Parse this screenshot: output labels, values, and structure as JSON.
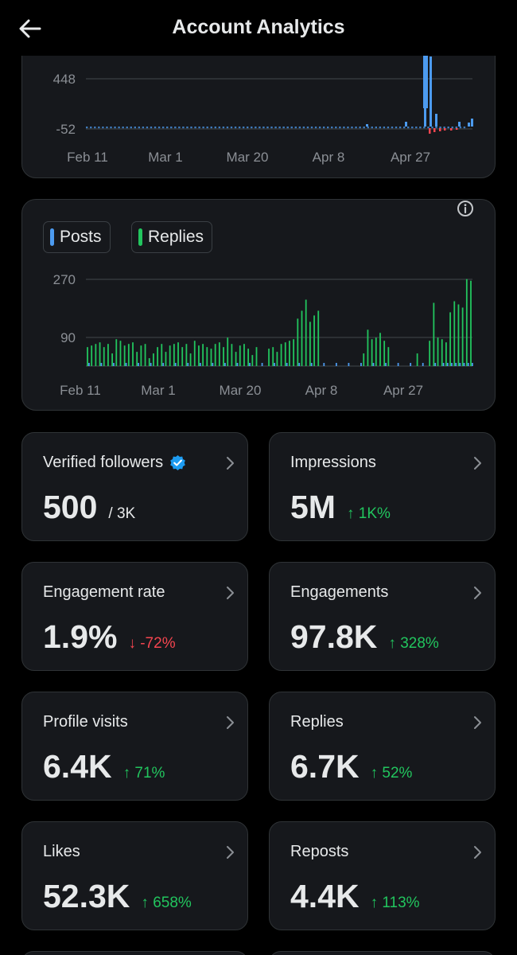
{
  "header": {
    "title": "Account Analytics",
    "back_icon": "arrow-left-icon"
  },
  "colors": {
    "background": "#000000",
    "card": "#16181c",
    "posts": "#4c9bf0",
    "replies": "#22c55e",
    "negative": "#f4454f",
    "muted": "#8b8f95",
    "verified": "#1d9bf0"
  },
  "chart_data": [
    {
      "type": "bar",
      "y_ticks": [
        "448",
        "-52"
      ],
      "x_ticks": [
        "Feb 11",
        "Mar 1",
        "Mar 20",
        "Apr 8",
        "Apr 27"
      ],
      "grid": true
    },
    {
      "type": "bar",
      "y_ticks": [
        "270",
        "90"
      ],
      "x_ticks": [
        "Feb 11",
        "Mar 1",
        "Mar 20",
        "Apr 8",
        "Apr 27"
      ],
      "grid": true,
      "series": [
        {
          "name": "Posts"
        },
        {
          "name": "Replies"
        }
      ],
      "legend_position": "top-left",
      "replies_values": [
        60,
        65,
        70,
        75,
        60,
        70,
        40,
        85,
        80,
        65,
        70,
        75,
        45,
        65,
        70,
        25,
        40,
        60,
        70,
        45,
        65,
        70,
        75,
        60,
        70,
        40,
        80,
        65,
        70,
        60,
        55,
        70,
        75,
        60,
        90,
        70,
        45,
        65,
        70,
        55,
        35,
        60,
        0,
        0,
        55,
        60,
        45,
        70,
        75,
        80,
        85,
        150,
        175,
        210,
        140,
        160,
        175,
        0,
        0,
        0,
        0,
        0,
        0,
        0,
        0,
        0,
        0,
        40,
        115,
        85,
        90,
        105,
        80,
        60,
        0,
        0,
        0,
        0,
        0,
        0,
        40,
        0,
        0,
        80,
        200,
        90,
        85,
        75,
        170,
        205,
        195,
        185,
        275,
        270
      ]
    }
  ],
  "legend": {
    "posts": "Posts",
    "replies": "Replies",
    "info_icon": "info-circle-icon"
  },
  "stats": [
    {
      "label": "Verified followers",
      "value": "500",
      "sub": "/ 3K",
      "change": "",
      "direction": "",
      "verified": true
    },
    {
      "label": "Impressions",
      "value": "5M",
      "change": "↑ 1K%",
      "direction": "up"
    },
    {
      "label": "Engagement rate",
      "value": "1.9%",
      "change": "↓ -72%",
      "direction": "down"
    },
    {
      "label": "Engagements",
      "value": "97.8K",
      "change": "↑ 328%",
      "direction": "up"
    },
    {
      "label": "Profile visits",
      "value": "6.4K",
      "change": "↑ 71%",
      "direction": "up"
    },
    {
      "label": "Replies",
      "value": "6.7K",
      "change": "↑ 52%",
      "direction": "up"
    },
    {
      "label": "Likes",
      "value": "52.3K",
      "change": "↑ 658%",
      "direction": "up"
    },
    {
      "label": "Reposts",
      "value": "4.4K",
      "change": "↑ 113%",
      "direction": "up"
    }
  ]
}
